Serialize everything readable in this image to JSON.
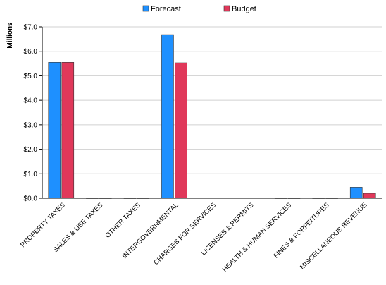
{
  "chart_data": {
    "type": "bar",
    "ylabel": "Millions",
    "ylim": [
      0,
      7
    ],
    "ytick_labels": [
      "$0.0",
      "$1.0",
      "$2.0",
      "$3.0",
      "$4.0",
      "$5.0",
      "$6.0",
      "$7.0"
    ],
    "grid": true,
    "legend_position": "top",
    "categories": [
      "PROPERTY TAXES",
      "SALES & USE TAXES",
      "OTHER TAXES",
      "INTERGOVERNMENTAL",
      "CHARGES FOR SERVICES",
      "LICENSES & PERMITS",
      "HEALTH & HUMAN SERVICES",
      "FINES & FORFEITURES",
      "MISCELLANEOUS REVENUE"
    ],
    "series": [
      {
        "name": "Forecast",
        "color": "#1E90FF",
        "values": [
          5.55,
          0,
          0,
          6.68,
          0.01,
          0.01,
          0,
          0,
          0.45
        ]
      },
      {
        "name": "Budget",
        "color": "#E0385A",
        "values": [
          5.55,
          0,
          0,
          5.53,
          0.01,
          0.01,
          0,
          0,
          0.2
        ]
      }
    ]
  }
}
